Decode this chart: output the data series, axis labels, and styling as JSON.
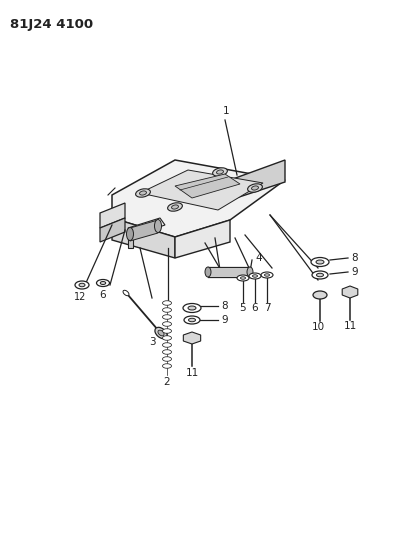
{
  "title": "81J24 4100",
  "bg_color": "#ffffff",
  "line_color": "#222222",
  "title_fontsize": 9.5,
  "label_fontsize": 7.5,
  "lw": 0.9
}
